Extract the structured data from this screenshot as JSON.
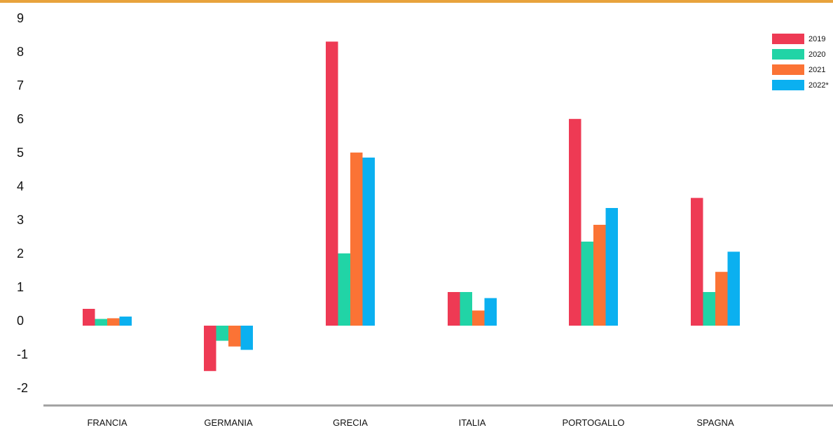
{
  "chart_data": {
    "type": "bar",
    "title": "",
    "xlabel": "",
    "ylabel": "",
    "categories": [
      "FRANCIA",
      "GERMANIA",
      "GRECIA",
      "ITALIA",
      "PORTOGALLO",
      "SPAGNA"
    ],
    "series": [
      {
        "name": "2019",
        "color": "#ee3a54",
        "values": [
          0.5,
          -1.35,
          8.45,
          1.0,
          6.15,
          3.8
        ]
      },
      {
        "name": "2020",
        "color": "#21d4a6",
        "values": [
          0.2,
          -0.45,
          2.15,
          1.0,
          2.5,
          1.0
        ]
      },
      {
        "name": "2021",
        "color": "#fb7335",
        "values": [
          0.22,
          -0.62,
          5.15,
          0.45,
          3.0,
          1.6
        ]
      },
      {
        "name": "2022*",
        "color": "#0bb0f0",
        "values": [
          0.27,
          -0.72,
          5.0,
          0.82,
          3.5,
          2.2
        ]
      }
    ],
    "yticks": [
      "9",
      "8",
      "7",
      "6",
      "5",
      "4",
      "3",
      "2",
      "1",
      "0",
      "-1",
      "-2"
    ],
    "ylim": [
      -2,
      9
    ],
    "grid": false,
    "legend_position": "top-right",
    "top_rule_color": "#e8a33c",
    "axis_color": "#a0a0a0"
  }
}
